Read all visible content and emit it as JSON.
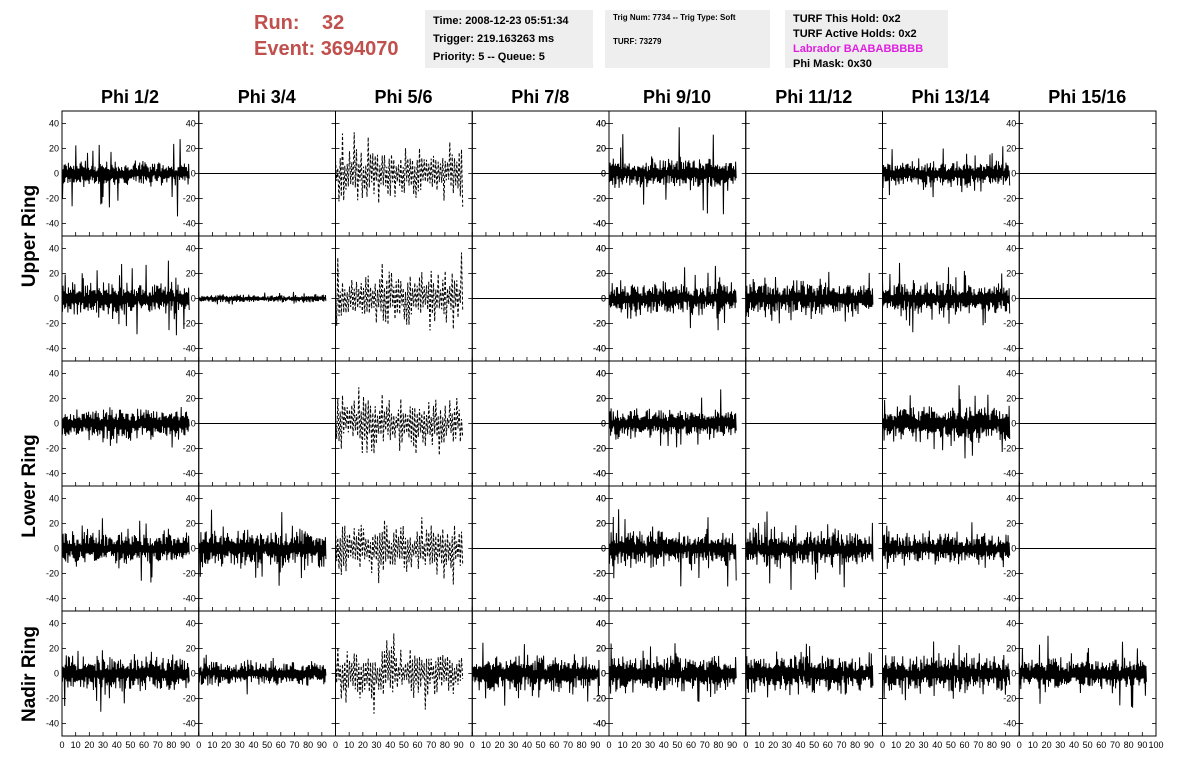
{
  "header": {
    "run_label": "Run:",
    "run_value": "32",
    "event_label": "Event:",
    "event_value": "3694070",
    "accent_color": "#c0504d"
  },
  "info_time": {
    "time": "Time: 2008-12-23 05:51:34",
    "trigger": "Trigger: 219.163263 ms",
    "priority": "Priority: 5 -- Queue: 5"
  },
  "info_trig": {
    "trig": "Trig Num: 7734 -- Trig Type: Soft",
    "turf": "TURF: 73279"
  },
  "info_turf": {
    "this_hold": "TURF This Hold: 0x2",
    "active_holds": "TURF Active Holds: 0x2",
    "labrador": "Labrador BAABABBBBB",
    "labrador_color": "#e020e0",
    "phi_mask": "Phi Mask: 0x30"
  },
  "columns": [
    "Phi 1/2",
    "Phi 3/4",
    "Phi 5/6",
    "Phi 7/8",
    "Phi 9/10",
    "Phi 11/12",
    "Phi 13/14",
    "Phi 15/16"
  ],
  "rows": [
    "Upper Ring",
    "Lower Ring",
    "Nadir Ring"
  ],
  "chart_data": {
    "type": "line",
    "x_range": [
      0,
      100
    ],
    "x_ticks": [
      "0",
      "10",
      "20",
      "30",
      "40",
      "50",
      "60",
      "70",
      "80",
      "90",
      "100"
    ],
    "y_range": [
      -50,
      50
    ],
    "y_ticks": [
      "40",
      "20",
      "0",
      "-20",
      "-40"
    ],
    "grid": false,
    "panel_rows": 5,
    "panel_cols": 8,
    "waveforms": [
      [
        {
          "style": "solid",
          "amp": [
            10,
            35
          ]
        },
        {
          "style": "flat"
        },
        {
          "style": "dashed",
          "amp": [
            22,
            44
          ]
        },
        {
          "style": "flat"
        },
        {
          "style": "solid",
          "amp": [
            12,
            45
          ]
        },
        {
          "style": "flat"
        },
        {
          "style": "solid",
          "amp": [
            10,
            30
          ]
        },
        {
          "style": "flat"
        }
      ],
      [
        {
          "style": "solid",
          "amp": [
            12,
            38
          ]
        },
        {
          "style": "solid",
          "amp": [
            3,
            6
          ]
        },
        {
          "style": "dashed",
          "amp": [
            24,
            46
          ]
        },
        {
          "style": "flat"
        },
        {
          "style": "solid",
          "amp": [
            12,
            30
          ]
        },
        {
          "style": "solid",
          "amp": [
            14,
            28
          ]
        },
        {
          "style": "solid",
          "amp": [
            12,
            32
          ]
        },
        {
          "style": "flat"
        }
      ],
      [
        {
          "style": "solid",
          "amp": [
            12,
            30
          ]
        },
        {
          "style": "flat"
        },
        {
          "style": "dashed",
          "amp": [
            22,
            40
          ]
        },
        {
          "style": "flat"
        },
        {
          "style": "solid",
          "amp": [
            12,
            38
          ]
        },
        {
          "style": "flat"
        },
        {
          "style": "solid",
          "amp": [
            14,
            32
          ]
        },
        {
          "style": "flat"
        }
      ],
      [
        {
          "style": "solid",
          "amp": [
            12,
            32
          ]
        },
        {
          "style": "solid",
          "amp": [
            14,
            32
          ]
        },
        {
          "style": "dashed",
          "amp": [
            22,
            40
          ]
        },
        {
          "style": "flat"
        },
        {
          "style": "solid",
          "amp": [
            14,
            42
          ]
        },
        {
          "style": "solid",
          "amp": [
            14,
            34
          ]
        },
        {
          "style": "solid",
          "amp": [
            12,
            24
          ]
        },
        {
          "style": "flat"
        }
      ],
      [
        {
          "style": "solid",
          "amp": [
            14,
            36
          ]
        },
        {
          "style": "solid",
          "amp": [
            10,
            22
          ]
        },
        {
          "style": "dashed",
          "amp": [
            20,
            40
          ]
        },
        {
          "style": "solid",
          "amp": [
            14,
            28
          ]
        },
        {
          "style": "solid",
          "amp": [
            14,
            32
          ]
        },
        {
          "style": "solid",
          "amp": [
            14,
            30
          ]
        },
        {
          "style": "solid",
          "amp": [
            14,
            30
          ]
        },
        {
          "style": "solid",
          "amp": [
            12,
            36
          ]
        }
      ]
    ]
  }
}
